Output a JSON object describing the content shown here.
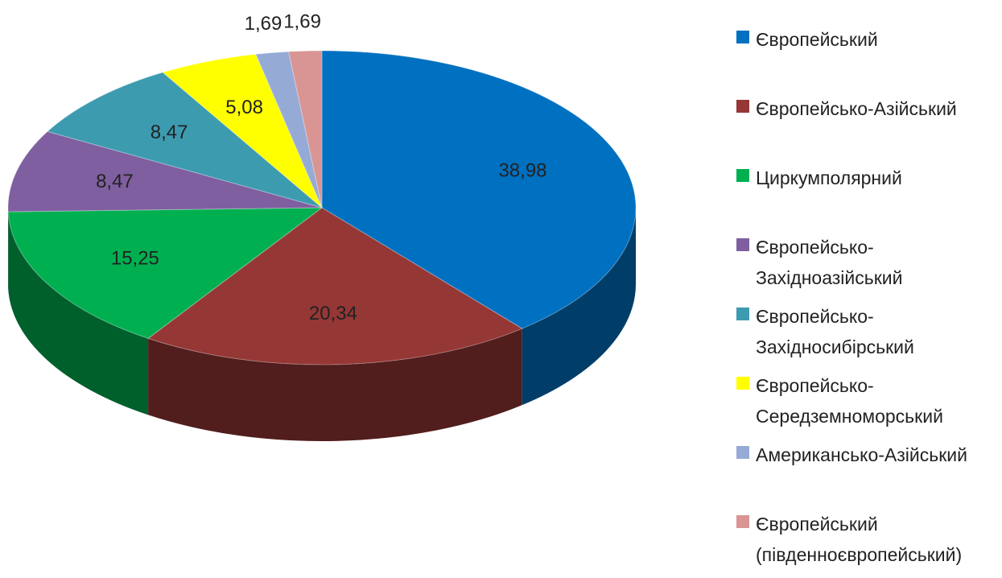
{
  "chart_data": {
    "type": "pie",
    "categories": [
      "Європейський",
      "Європейсько-Азійський",
      "Циркумполярний",
      "Європейсько-Західноазійський",
      "Європейсько-Західносибірський",
      "Європейсько-Середземноморський",
      "Американсько-Азійський",
      "Європейський (південноєвропейський)"
    ],
    "values": [
      38.98,
      20.34,
      15.25,
      8.47,
      8.47,
      5.08,
      1.69,
      1.69
    ],
    "value_labels": [
      "38,98",
      "20,34",
      "15,25",
      "8,47",
      "8,47",
      "5,08",
      "1,69",
      "1,69"
    ],
    "colors": [
      "#0070c0",
      "#953735",
      "#00b050",
      "#7f5fa0",
      "#3d9bb0",
      "#ffff00",
      "#95abd6",
      "#d99594"
    ]
  }
}
